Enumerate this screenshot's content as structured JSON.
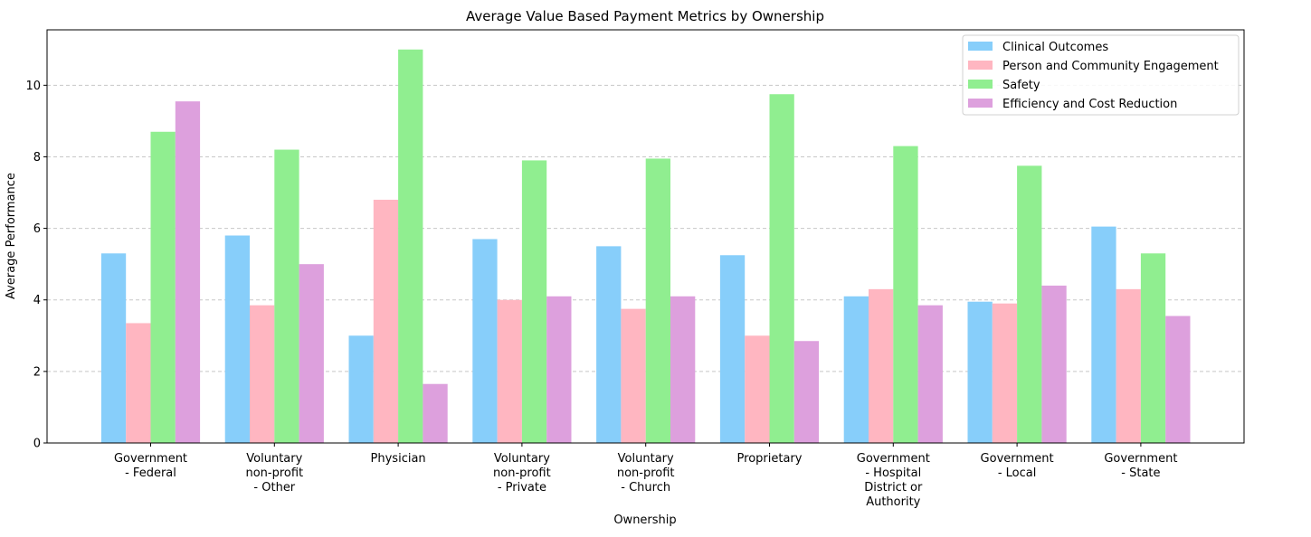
{
  "chart_data": {
    "type": "bar",
    "title": "Average Value Based Payment Metrics by Ownership",
    "xlabel": "Ownership",
    "ylabel": "Average Performance",
    "ylim": [
      0,
      11.55
    ],
    "yticks": [
      0,
      2,
      4,
      6,
      8,
      10
    ],
    "grid": "y-dashed",
    "legend_position": "top-right",
    "categories": [
      "Government\n- Federal",
      "Voluntary\nnon-profit\n- Other",
      "Physician",
      "Voluntary\nnon-profit\n- Private",
      "Voluntary\nnon-profit\n- Church",
      "Proprietary",
      "Government\n- Hospital\nDistrict or\nAuthority",
      "Government\n- Local",
      "Government\n- State"
    ],
    "series": [
      {
        "name": "Clinical Outcomes",
        "color": "#87CEFA",
        "values": [
          5.3,
          5.8,
          3.0,
          5.7,
          5.5,
          5.25,
          4.1,
          3.95,
          6.05
        ]
      },
      {
        "name": "Person and Community Engagement",
        "color": "#FFB6C1",
        "values": [
          3.35,
          3.85,
          6.8,
          4.0,
          3.75,
          3.0,
          4.3,
          3.9,
          4.3
        ]
      },
      {
        "name": "Safety",
        "color": "#90EE90",
        "values": [
          8.7,
          8.2,
          11.0,
          7.9,
          7.95,
          9.75,
          8.3,
          7.75,
          5.3
        ]
      },
      {
        "name": "Efficiency and Cost Reduction",
        "color": "#DDA0DD",
        "values": [
          9.55,
          5.0,
          1.65,
          4.1,
          4.1,
          2.85,
          3.85,
          4.4,
          3.55
        ]
      }
    ]
  }
}
